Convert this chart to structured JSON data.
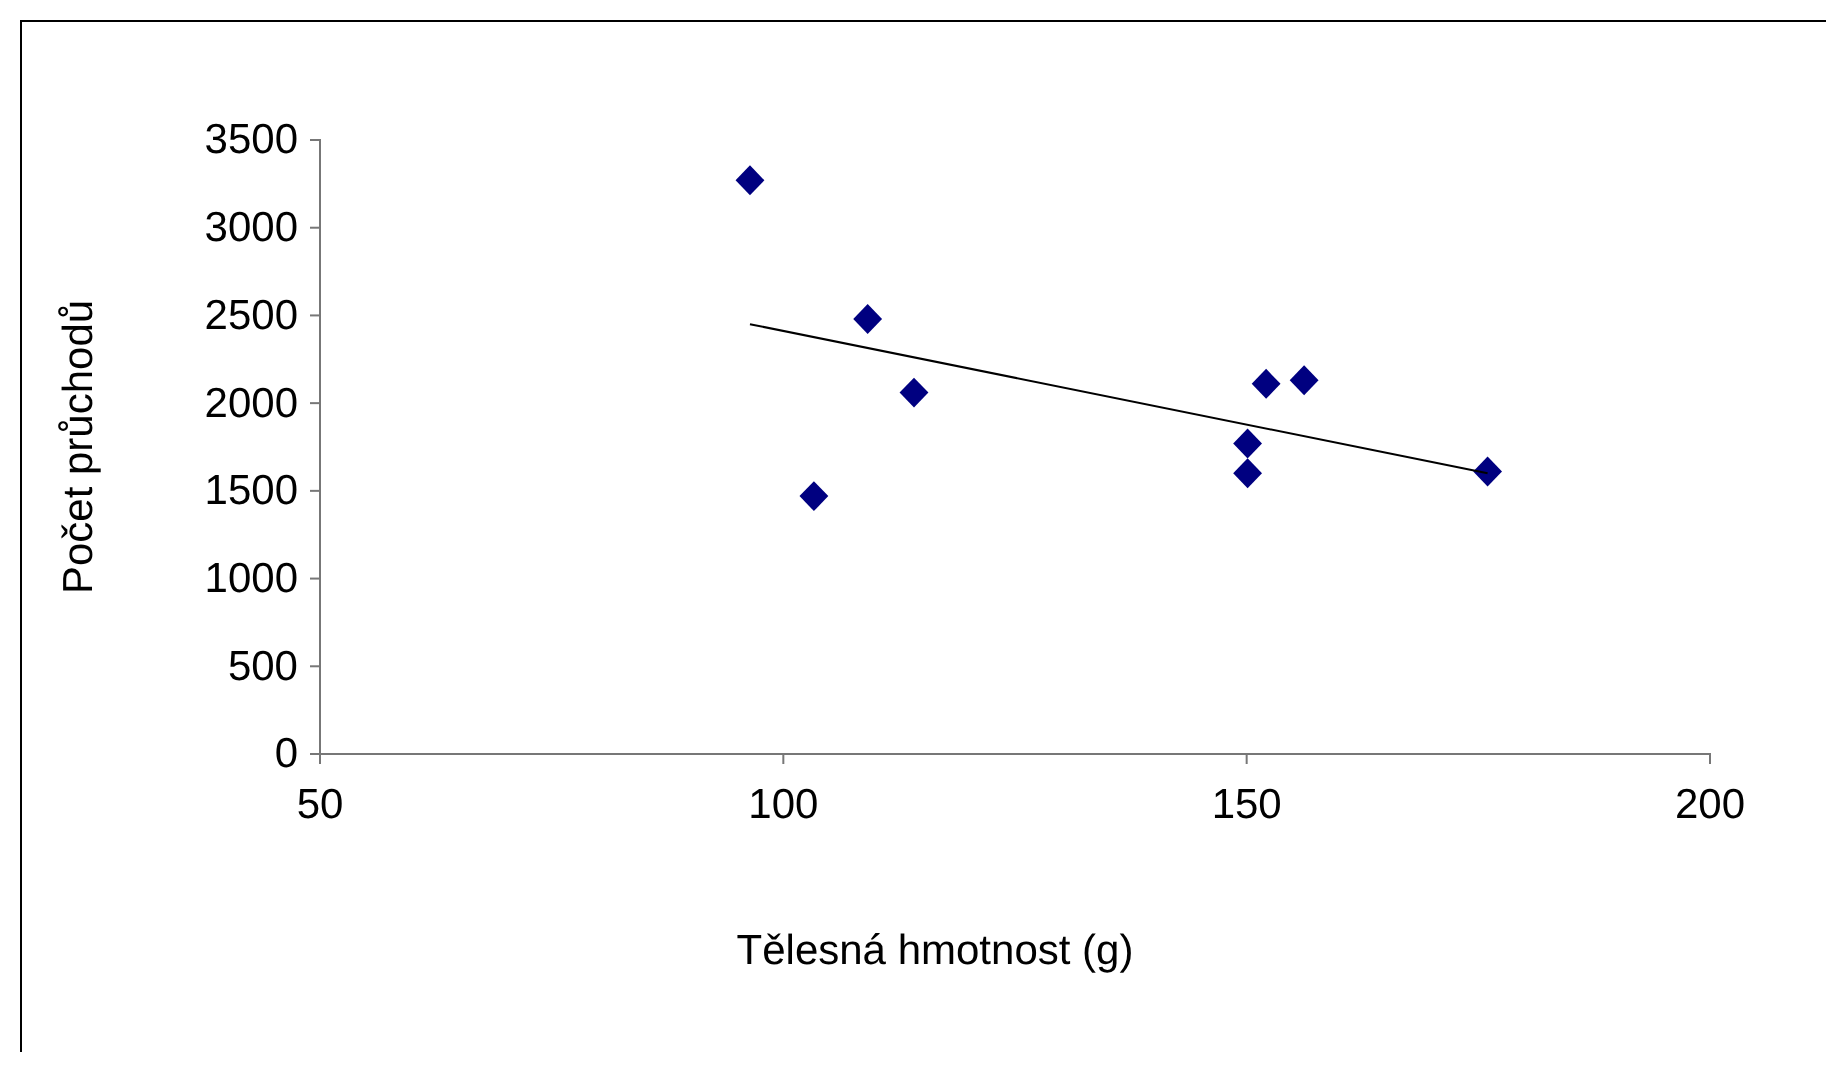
{
  "chart_data": {
    "type": "scatter",
    "xlabel": "Tělesná hmotnost (g)",
    "ylabel": "Počet průchodů",
    "xlim": [
      50,
      200
    ],
    "xticks": [
      50,
      100,
      150,
      200
    ],
    "ylim": [
      0,
      3500
    ],
    "yticks": [
      0,
      500,
      1000,
      1500,
      2000,
      2500,
      3000,
      3500
    ],
    "grid": false,
    "marker": "diamond",
    "series": [
      {
        "color": "#000080",
        "x": [
          96.4,
          103.3,
          109.1,
          114.1,
          150.1,
          150.1,
          152.1,
          156.2,
          176.0
        ],
        "values": [
          3270,
          1470,
          2480,
          2060,
          1770,
          1600,
          2110,
          2130,
          1610
        ]
      },
      {
        "type": "line",
        "marker": "none",
        "color": "#000000",
        "x": [
          96.4,
          176.0
        ],
        "values": [
          2450,
          1600
        ]
      }
    ]
  }
}
